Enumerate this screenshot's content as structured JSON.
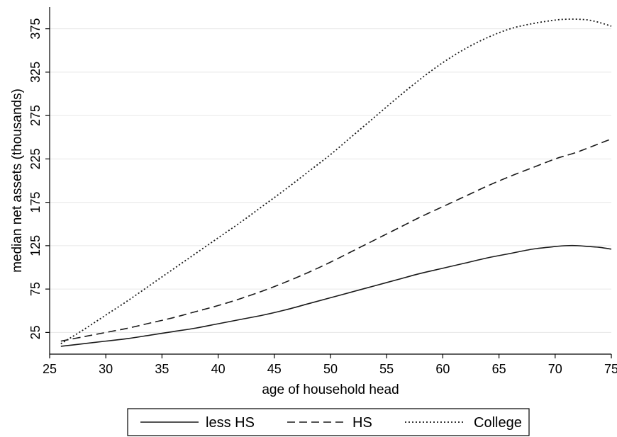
{
  "chart_data": {
    "type": "line",
    "title": "",
    "xlabel": "age of household head",
    "ylabel": "median net assets (thousands)",
    "xlim": [
      25,
      75
    ],
    "ylim": [
      0,
      400
    ],
    "x_ticks": [
      25,
      30,
      35,
      40,
      45,
      50,
      55,
      60,
      65,
      70,
      75
    ],
    "y_ticks": [
      25,
      75,
      125,
      175,
      225,
      275,
      325,
      375
    ],
    "grid": "horizontal",
    "legend_position": "bottom",
    "x": [
      26,
      28,
      30,
      32,
      34,
      36,
      38,
      40,
      42,
      44,
      46,
      48,
      50,
      52,
      54,
      56,
      58,
      60,
      62,
      64,
      66,
      68,
      70,
      71,
      72,
      73,
      74,
      75
    ],
    "series": [
      {
        "name": "less HS",
        "style": "solid",
        "values": [
          9,
          12,
          15,
          18,
          22,
          26,
          30,
          35,
          40,
          45,
          51,
          58,
          65,
          72,
          79,
          86,
          93,
          99,
          105,
          111,
          116,
          121,
          124,
          125,
          125,
          124,
          123,
          121
        ]
      },
      {
        "name": "HS",
        "style": "dashed",
        "values": [
          15,
          20,
          25,
          30,
          36,
          42,
          49,
          56,
          64,
          73,
          83,
          94,
          106,
          119,
          132,
          145,
          158,
          170,
          182,
          194,
          205,
          215,
          225,
          229,
          233,
          238,
          243,
          248
        ]
      },
      {
        "name": "College",
        "style": "dotted",
        "values": [
          12,
          28,
          45,
          62,
          80,
          98,
          116,
          134,
          152,
          171,
          190,
          210,
          230,
          252,
          274,
          296,
          317,
          336,
          352,
          365,
          375,
          381,
          385,
          386,
          386,
          385,
          382,
          378
        ]
      }
    ]
  }
}
